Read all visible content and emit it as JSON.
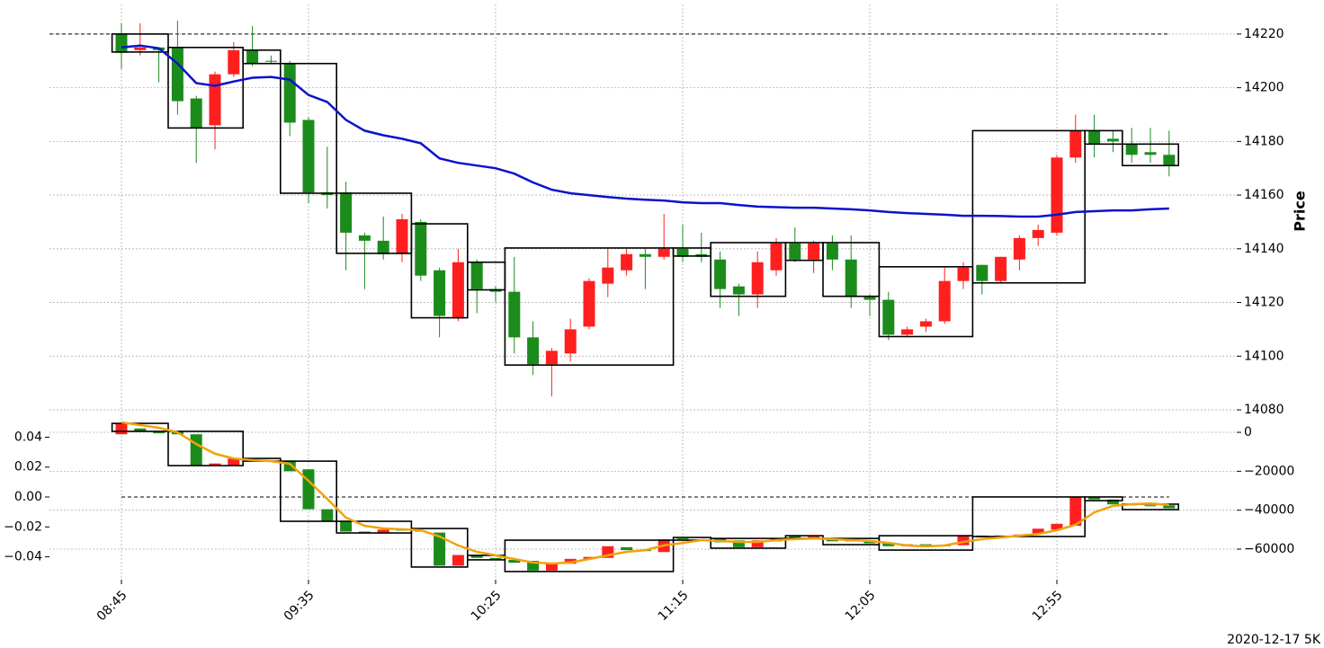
{
  "chart_data": [
    {
      "type": "candlestick",
      "ylabel": "Price",
      "up_color": "#ff1f1f",
      "down_color": "#1b8c1b",
      "grid": true,
      "ylim": [
        14077,
        14231
      ],
      "yticks": [
        14080,
        14100,
        14120,
        14140,
        14160,
        14180,
        14200,
        14220
      ],
      "hline": 14220,
      "open": [
        14220,
        14214,
        14215,
        14215,
        14196,
        14186,
        14205,
        14214,
        14210,
        14209,
        14188,
        14161,
        14161,
        14145,
        14143,
        14138,
        14150,
        14132,
        14114,
        14135,
        14125,
        14124,
        14107,
        14097,
        14101,
        14111,
        14127,
        14132,
        14138,
        14137,
        14140,
        14138,
        14136,
        14126,
        14123,
        14132,
        14142,
        14136,
        14142,
        14136,
        14122,
        14121,
        14108,
        14111,
        14113,
        14128,
        14134,
        14128,
        14136,
        14144,
        14146,
        14174,
        14184,
        14181,
        14179,
        14176,
        14175
      ],
      "high": [
        14224,
        14224,
        14215,
        14225,
        14197,
        14206,
        14217,
        14223,
        14212,
        14210,
        14189,
        14178,
        14165,
        14146,
        14152,
        14153,
        14151,
        14133,
        14140,
        14136,
        14126,
        14137,
        14113,
        14103,
        14114,
        14129,
        14140,
        14140,
        14140,
        14153,
        14149,
        14146,
        14139,
        14127,
        14139,
        14144,
        14148,
        14143,
        14145,
        14145,
        14123,
        14124,
        14111,
        14114,
        14133,
        14135,
        14134,
        14137,
        14145,
        14149,
        14175,
        14190,
        14190,
        14184,
        14185,
        14185,
        14184
      ],
      "low": [
        14207,
        14212,
        14202,
        14190,
        14172,
        14177,
        14204,
        14208,
        14209,
        14182,
        14157,
        14155,
        14132,
        14125,
        14136,
        14135,
        14128,
        14107,
        14113,
        14116,
        14120,
        14101,
        14093,
        14085,
        14098,
        14110,
        14122,
        14130,
        14125,
        14136,
        14135,
        14135,
        14118,
        14115,
        14118,
        14130,
        14135,
        14131,
        14132,
        14118,
        14115,
        14106,
        14107,
        14109,
        14112,
        14125,
        14123,
        14127,
        14132,
        14141,
        14145,
        14172,
        14174,
        14176,
        14172,
        14172,
        14167
      ],
      "close": [
        14213,
        14215,
        14214,
        14195,
        14185,
        14205,
        14214,
        14209,
        14210,
        14187,
        14161,
        14160,
        14146,
        14143,
        14138,
        14151,
        14130,
        14115,
        14135,
        14125,
        14124,
        14107,
        14097,
        14102,
        14110,
        14128,
        14133,
        14138,
        14137,
        14140,
        14137,
        14137,
        14125,
        14123,
        14135,
        14142,
        14136,
        14142,
        14136,
        14122,
        14121,
        14108,
        14110,
        14113,
        14128,
        14133,
        14128,
        14137,
        14144,
        14147,
        14174,
        14184,
        14179,
        14180,
        14175,
        14175,
        14171
      ],
      "ma": {
        "color": "#0a12cc",
        "values": [
          14215,
          14215.7,
          14214.7,
          14209,
          14201.7,
          14200.7,
          14202.3,
          14203.7,
          14204,
          14203,
          14197.3,
          14194.7,
          14188,
          14184,
          14182.3,
          14181,
          14179.3,
          14173.7,
          14172,
          14171,
          14170,
          14168,
          14164.7,
          14162,
          14160.7,
          14160,
          14159.3,
          14158.7,
          14158.3,
          14158,
          14157.3,
          14157,
          14157,
          14156.3,
          14155.7,
          14155.5,
          14155.3,
          14155.3,
          14155,
          14154.7,
          14154.3,
          14153.7,
          14153.3,
          14153,
          14152.7,
          14152.3,
          14152.3,
          14152.2,
          14152,
          14152,
          14152.7,
          14153.7,
          14154,
          14154.3,
          14154.3,
          14154.7,
          14155
        ]
      },
      "boxes": [
        {
          "first": 0,
          "last": 2,
          "high": 14220,
          "low": 14213.3
        },
        {
          "first": 3,
          "last": 6,
          "high": 14215,
          "low": 14185
        },
        {
          "first": 7,
          "last": 8,
          "high": 14214,
          "low": 14209
        },
        {
          "first": 9,
          "last": 11,
          "high": 14209,
          "low": 14160.7
        },
        {
          "first": 12,
          "last": 15,
          "high": 14160.7,
          "low": 14138.3
        },
        {
          "first": 16,
          "last": 18,
          "high": 14149.3,
          "low": 14114.3
        },
        {
          "first": 19,
          "last": 20,
          "high": 14135,
          "low": 14124.7
        },
        {
          "first": 21,
          "last": 29,
          "high": 14140.3,
          "low": 14096.7
        },
        {
          "first": 30,
          "last": 31,
          "high": 14140.3,
          "low": 14137.3
        },
        {
          "first": 32,
          "last": 35,
          "high": 14142.3,
          "low": 14122.3
        },
        {
          "first": 36,
          "last": 37,
          "high": 14142.3,
          "low": 14135.7
        },
        {
          "first": 38,
          "last": 40,
          "high": 14142.3,
          "low": 14122.3
        },
        {
          "first": 41,
          "last": 45,
          "high": 14133.3,
          "low": 14107.3
        },
        {
          "first": 46,
          "last": 51,
          "high": 14184,
          "low": 14127.3
        },
        {
          "first": 52,
          "last": 53,
          "high": 14184,
          "low": 14179
        },
        {
          "first": 54,
          "last": 56,
          "high": 14179,
          "low": 14171
        }
      ]
    },
    {
      "type": "candlestick",
      "up_color": "#ff1f1f",
      "down_color": "#1b8c1b",
      "grid": true,
      "caption": "2020-12-17 5K",
      "categories": [
        "08:45",
        null,
        null,
        null,
        null,
        null,
        null,
        null,
        null,
        null,
        "09:35",
        null,
        null,
        null,
        null,
        null,
        null,
        null,
        null,
        null,
        "10:25",
        null,
        null,
        null,
        null,
        null,
        null,
        null,
        null,
        null,
        "11:15",
        null,
        null,
        null,
        null,
        null,
        null,
        null,
        null,
        null,
        "12:05",
        null,
        null,
        null,
        null,
        null,
        null,
        null,
        null,
        null,
        "12:55",
        null,
        null,
        null,
        null,
        null,
        null
      ],
      "ylim": [
        -75700,
        7400
      ],
      "yticks": [
        0,
        {
          "value": -20000,
          "label": "−20000"
        },
        {
          "value": -40000,
          "label": "−40000"
        },
        {
          "value": -60000,
          "label": "−60000"
        }
      ],
      "y2lim": [
        -0.0553,
        0.0529
      ],
      "y2ticks": [
        0.04,
        0.02,
        {
          "value": 0,
          "label": "0.00"
        },
        {
          "value": -0.02,
          "label": "−0.02"
        },
        {
          "value": -0.04,
          "label": "−0.04"
        }
      ],
      "hline": {
        "value": 0,
        "axis": "y2"
      },
      "open": [
        -1000,
        2000,
        500,
        500,
        -1000,
        -17000,
        -17000,
        -14000,
        -14500,
        -14500,
        -19000,
        -39500,
        -45500,
        -51000,
        -51500,
        -50000,
        -50500,
        -51500,
        -68500,
        -63000,
        -64500,
        -65500,
        -66000,
        -71000,
        -67500,
        -65000,
        -64500,
        -59000,
        -60500,
        -61500,
        -54500,
        -55000,
        -54500,
        -55500,
        -59000,
        -56000,
        -53000,
        -54500,
        -54500,
        -55000,
        -55500,
        -56500,
        -58500,
        -57500,
        -58000,
        -58000,
        -53000,
        -54000,
        -53000,
        -52000,
        -50000,
        -48000,
        -33000,
        -34500,
        -37000,
        -37500,
        -37500
      ],
      "close": [
        4600,
        500,
        -500,
        -1000,
        -17000,
        -16000,
        -13500,
        -14500,
        -15000,
        -20000,
        -39500,
        -45500,
        -51000,
        -51500,
        -50000,
        -50500,
        -51000,
        -68500,
        -63000,
        -64500,
        -65500,
        -67000,
        -71000,
        -67500,
        -65000,
        -64000,
        -58500,
        -60500,
        -61000,
        -55000,
        -55000,
        -55500,
        -56500,
        -59000,
        -55500,
        -54500,
        -54500,
        -53500,
        -56000,
        -56000,
        -57000,
        -58500,
        -57500,
        -58000,
        -58500,
        -53000,
        -54000,
        -53000,
        -52500,
        -49500,
        -47000,
        -33000,
        -34500,
        -37000,
        -37500,
        -38000,
        -39000
      ],
      "line": {
        "color": "#f0a30a",
        "values": [
          5100,
          3700,
          2300,
          0,
          -6000,
          -11000,
          -13400,
          -14300,
          -14800,
          -16200,
          -24900,
          -34200,
          -43800,
          -48000,
          -49400,
          -49800,
          -50300,
          -53500,
          -58100,
          -61400,
          -63200,
          -65100,
          -66900,
          -67400,
          -66900,
          -65100,
          -63200,
          -61400,
          -60500,
          -58100,
          -56800,
          -55400,
          -55800,
          -56300,
          -56300,
          -55400,
          -54900,
          -54500,
          -54900,
          -55400,
          -55800,
          -56800,
          -58100,
          -58600,
          -58100,
          -56300,
          -54900,
          -54000,
          -53100,
          -52200,
          -50300,
          -47500,
          -41100,
          -37800,
          -36900,
          -36500,
          -37400
        ]
      },
      "boxes": [
        {
          "first": 0,
          "last": 2,
          "high": 4600,
          "low": 500
        },
        {
          "first": 3,
          "last": 6,
          "high": 500,
          "low": -17100
        },
        {
          "first": 7,
          "last": 8,
          "high": -13400,
          "low": -14800
        },
        {
          "first": 9,
          "last": 11,
          "high": -14800,
          "low": -45700
        },
        {
          "first": 12,
          "last": 15,
          "high": -45700,
          "low": -51700
        },
        {
          "first": 16,
          "last": 18,
          "high": -49400,
          "low": -69200
        },
        {
          "first": 19,
          "last": 20,
          "high": -63200,
          "low": -65500
        },
        {
          "first": 21,
          "last": 29,
          "high": -55400,
          "low": -71500
        },
        {
          "first": 30,
          "last": 31,
          "high": -54000,
          "low": -55400
        },
        {
          "first": 32,
          "last": 35,
          "high": -54500,
          "low": -59500
        },
        {
          "first": 36,
          "last": 37,
          "high": -53100,
          "low": -54500
        },
        {
          "first": 38,
          "last": 40,
          "high": -54500,
          "low": -57700
        },
        {
          "first": 41,
          "last": 45,
          "high": -53100,
          "low": -60500
        },
        {
          "first": 46,
          "last": 51,
          "high": -33200,
          "low": -53500
        },
        {
          "first": 52,
          "last": 53,
          "high": -33200,
          "low": -35100
        },
        {
          "first": 54,
          "last": 56,
          "high": -36900,
          "low": -39700
        }
      ]
    }
  ]
}
